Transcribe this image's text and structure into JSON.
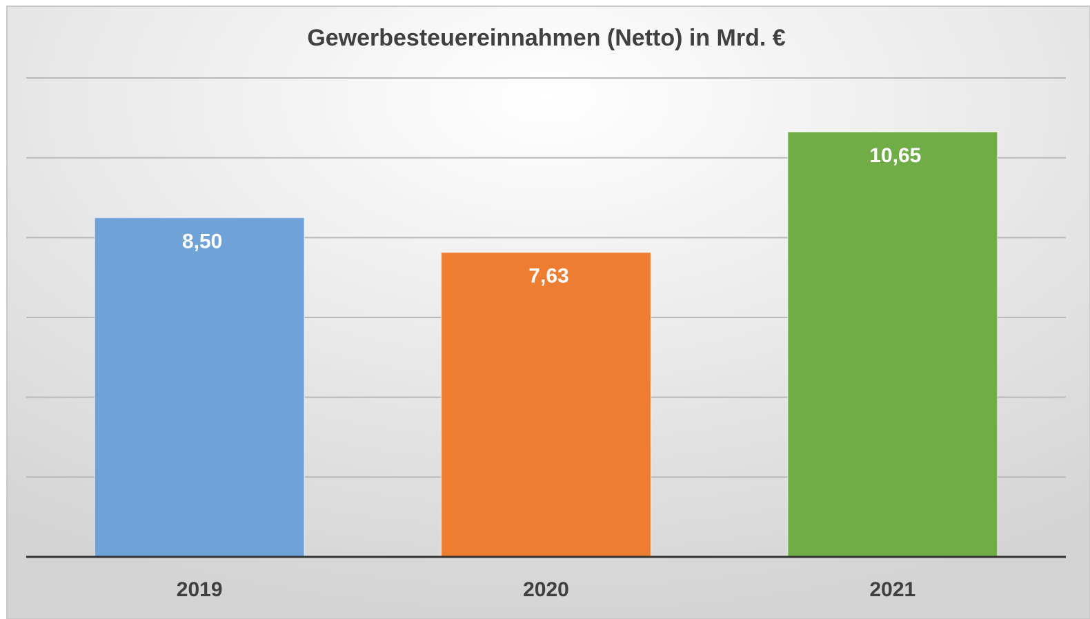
{
  "chart_data": {
    "type": "bar",
    "title": "Gewerbesteuereinnahmen (Netto) in Mrd. €",
    "categories": [
      "2019",
      "2020",
      "2021"
    ],
    "values": [
      8.5,
      7.63,
      10.65
    ],
    "value_labels": [
      "8,50",
      "7,63",
      "10,65"
    ],
    "colors": [
      "#6fa3d8",
      "#ed7d31",
      "#70ad47"
    ],
    "ylim": [
      0,
      12
    ],
    "yticks": [
      0,
      2,
      4,
      6,
      8,
      10,
      12
    ],
    "grid": true
  }
}
